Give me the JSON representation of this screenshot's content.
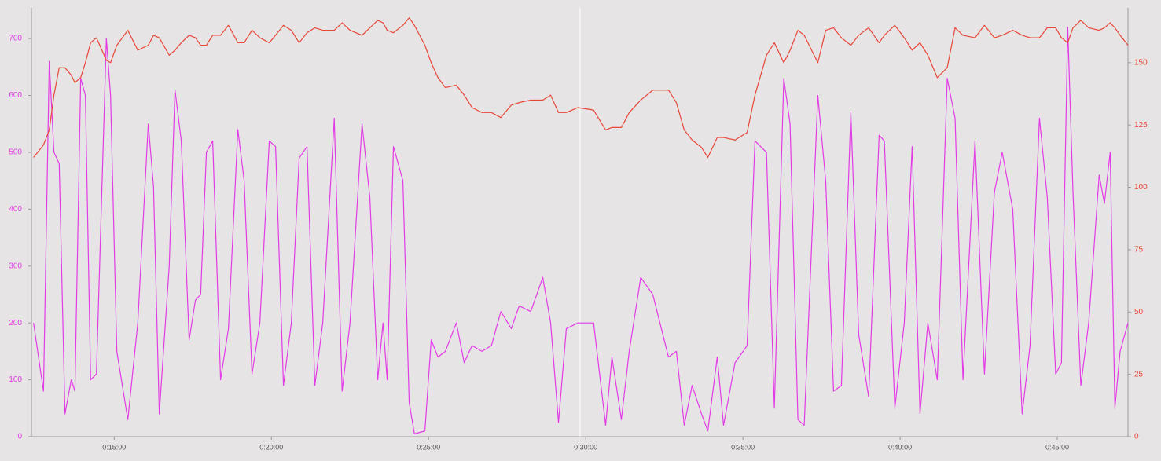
{
  "chart_data": {
    "type": "line",
    "x": [
      746,
      765,
      776,
      785,
      795,
      806,
      818,
      825,
      836,
      845,
      855,
      866,
      885,
      893,
      905,
      926,
      945,
      965,
      975,
      986,
      1005,
      1016,
      1028,
      1043,
      1055,
      1065,
      1076,
      1088,
      1103,
      1118,
      1136,
      1148,
      1163,
      1178,
      1196,
      1208,
      1223,
      1238,
      1253,
      1268,
      1283,
      1298,
      1320,
      1335,
      1350,
      1373,
      1388,
      1403,
      1413,
      1421,
      1433,
      1451,
      1463,
      1473,
      1493,
      1505,
      1518,
      1532,
      1553,
      1568,
      1583,
      1602,
      1620,
      1638,
      1658,
      1673,
      1695,
      1718,
      1733,
      1748,
      1763,
      1785,
      1815,
      1838,
      1850,
      1868,
      1883,
      1905,
      1928,
      1958,
      1973,
      1988,
      2003,
      2021,
      2033,
      2051,
      2063,
      2085,
      2108,
      2123,
      2145,
      2160,
      2178,
      2190,
      2205,
      2217,
      2243,
      2258,
      2273,
      2288,
      2306,
      2321,
      2340,
      2360,
      2370,
      2390,
      2408,
      2423,
      2438,
      2453,
      2471,
      2490,
      2505,
      2520,
      2543,
      2561,
      2580,
      2595,
      2615,
      2633,
      2648,
      2666,
      2681,
      2697,
      2708,
      2720,
      2730,
      2745,
      2760,
      2780,
      2790,
      2801,
      2810,
      2820,
      2835
    ],
    "series": [
      {
        "color": "#e23ce6",
        "axis": "y",
        "values": [
          200,
          80,
          660,
          500,
          480,
          40,
          100,
          80,
          630,
          600,
          100,
          110,
          700,
          600,
          150,
          30,
          200,
          550,
          440,
          40,
          300,
          610,
          520,
          170,
          240,
          250,
          500,
          520,
          100,
          190,
          540,
          450,
          110,
          200,
          520,
          510,
          90,
          200,
          490,
          510,
          90,
          200,
          560,
          80,
          200,
          550,
          420,
          100,
          200,
          100,
          510,
          450,
          60,
          5,
          10,
          170,
          140,
          150,
          200,
          130,
          160,
          150,
          160,
          220,
          190,
          230,
          220,
          280,
          200,
          25,
          190,
          200,
          200,
          20,
          140,
          30,
          150,
          280,
          250,
          140,
          150,
          20,
          90,
          40,
          10,
          140,
          20,
          130,
          160,
          520,
          500,
          50,
          630,
          550,
          30,
          20,
          600,
          450,
          80,
          90,
          570,
          180,
          70,
          530,
          520,
          50,
          200,
          510,
          40,
          200,
          100,
          630,
          560,
          100,
          520,
          110,
          430,
          500,
          400,
          40,
          160,
          560,
          420,
          110,
          130,
          720,
          430,
          90,
          200,
          460,
          410,
          500,
          50,
          150,
          200
        ]
      },
      {
        "color": "#e8473a",
        "axis": "y2",
        "values": [
          112,
          117,
          123,
          137,
          148,
          148,
          145,
          142,
          144,
          150,
          158,
          160,
          151,
          150,
          157,
          163,
          155,
          157,
          161,
          160,
          153,
          155,
          158,
          161,
          160,
          157,
          157,
          161,
          161,
          165,
          158,
          158,
          163,
          160,
          158,
          161,
          165,
          163,
          158,
          162,
          164,
          163,
          163,
          166,
          163,
          161,
          164,
          167,
          166,
          163,
          162,
          165,
          168,
          165,
          157,
          150,
          144,
          140,
          141,
          137,
          132,
          130,
          130,
          128,
          133,
          134,
          135,
          135,
          137,
          130,
          130,
          132,
          131,
          123,
          124,
          124,
          130,
          135,
          139,
          139,
          134,
          123,
          119,
          116,
          112,
          120,
          120,
          119,
          122,
          137,
          153,
          158,
          150,
          155,
          163,
          161,
          150,
          163,
          164,
          160,
          157,
          161,
          164,
          158,
          161,
          165,
          160,
          155,
          158,
          153,
          144,
          148,
          164,
          161,
          160,
          165,
          160,
          161,
          163,
          161,
          160,
          160,
          164,
          164,
          160,
          158,
          164,
          167,
          164,
          163,
          164,
          166,
          164,
          161,
          157
        ]
      }
    ],
    "xlim": [
      742,
      2835
    ],
    "xticks": [
      {
        "value": 900,
        "label": "0:15:00"
      },
      {
        "value": 1200,
        "label": "0:20:00"
      },
      {
        "value": 1500,
        "label": "0:25:00"
      },
      {
        "value": 1800,
        "label": "0:30:00"
      },
      {
        "value": 2100,
        "label": "0:35:00"
      },
      {
        "value": 2400,
        "label": "0:40:00"
      },
      {
        "value": 2700,
        "label": "0:45:00"
      }
    ],
    "ylim": [
      0,
      754
    ],
    "yticks": [
      0,
      100,
      200,
      300,
      400,
      500,
      600,
      700
    ],
    "y2lim": [
      0,
      172
    ],
    "y2ticks": [
      0,
      25,
      50,
      75,
      100,
      125,
      150
    ],
    "grid": false
  }
}
